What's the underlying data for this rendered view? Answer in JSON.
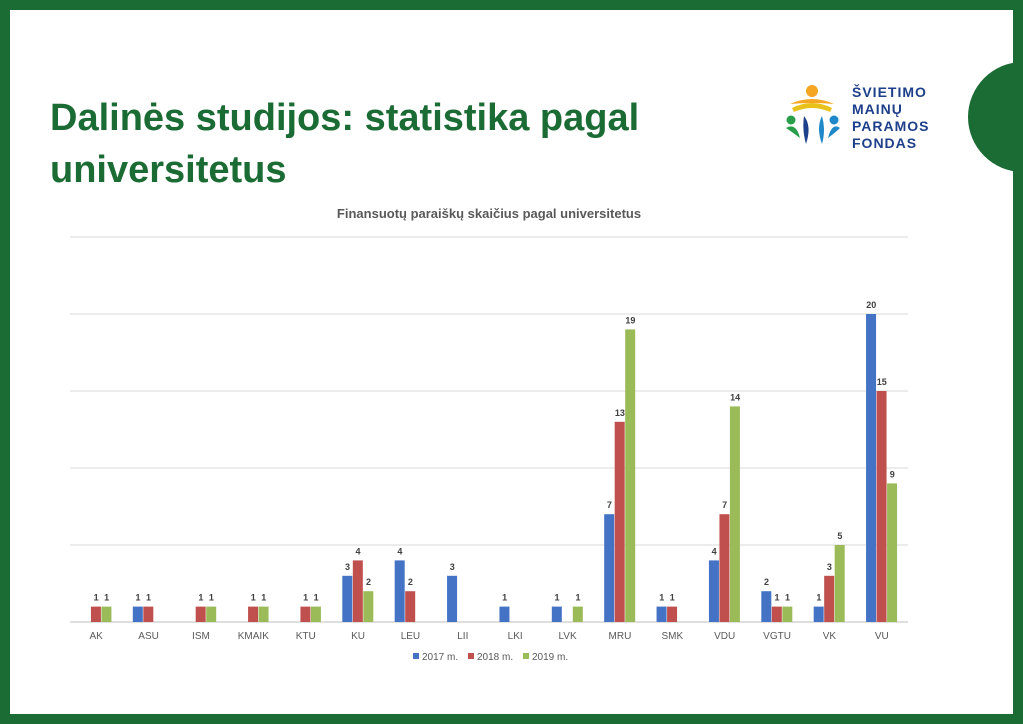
{
  "slide": {
    "title_line1": "Dalinės studijos: statistika pagal",
    "title_line2": "universitetus",
    "logo_lines": [
      "ŠVIETIMO",
      "MAINŲ",
      "PARAMOS",
      "FONDAS"
    ]
  },
  "colors": {
    "frame": "#1b6b34",
    "title": "#1b6b34",
    "logo_text": "#1e3f8a"
  },
  "chart_data": {
    "type": "bar",
    "title": "Finansuotų paraiškų skaičius pagal universitetus",
    "categories": [
      "AK",
      "ASU",
      "ISM",
      "KMAIK",
      "KTU",
      "KU",
      "LEU",
      "LII",
      "LKI",
      "LVK",
      "MRU",
      "SMK",
      "VDU",
      "VGTU",
      "VK",
      "VU"
    ],
    "series": [
      {
        "name": "2017 m.",
        "color": "#4472c4",
        "values": [
          null,
          1,
          null,
          null,
          null,
          3,
          4,
          3,
          1,
          1,
          7,
          1,
          4,
          2,
          1,
          20
        ]
      },
      {
        "name": "2018 m.",
        "color": "#c0504d",
        "values": [
          1,
          1,
          1,
          1,
          1,
          4,
          2,
          null,
          null,
          null,
          13,
          1,
          7,
          1,
          3,
          15
        ]
      },
      {
        "name": "2019 m.",
        "color": "#9bbb59",
        "values": [
          1,
          null,
          1,
          1,
          1,
          2,
          null,
          null,
          null,
          1,
          19,
          null,
          14,
          1,
          5,
          9
        ]
      }
    ],
    "ylim": [
      0,
      25
    ],
    "grid": true,
    "legend": "bottom-center"
  }
}
